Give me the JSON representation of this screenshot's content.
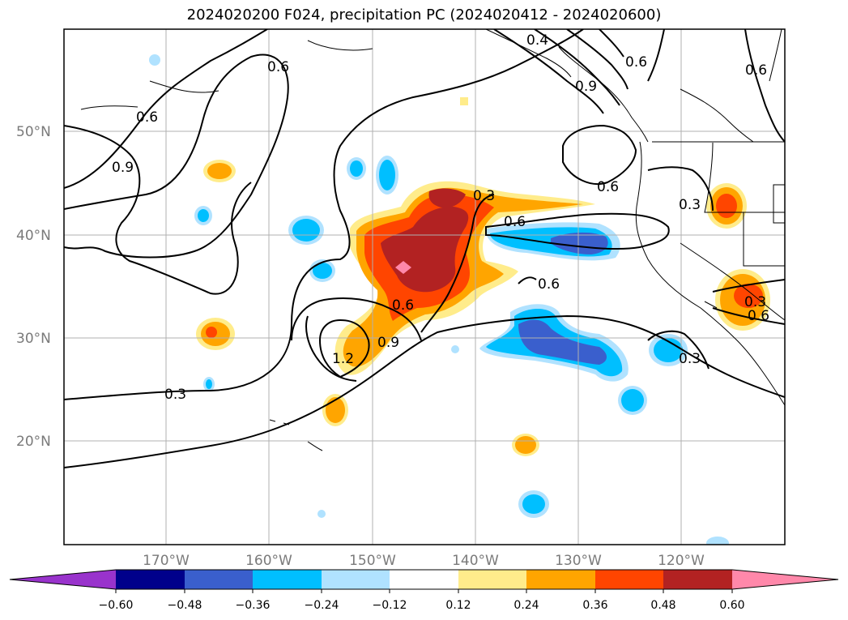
{
  "title": "2024020200 F024, precipitation PC (2024020412 - 2024020600)",
  "lat_labels": [
    "50°N",
    "40°N",
    "30°N",
    "20°N"
  ],
  "lon_labels": [
    "170°W",
    "160°W",
    "150°W",
    "140°W",
    "130°W",
    "120°W"
  ],
  "colorbar": {
    "ticks": [
      "−0.60",
      "−0.48",
      "−0.36",
      "−0.24",
      "−0.12",
      "0.12",
      "0.24",
      "0.36",
      "0.48",
      "0.60"
    ],
    "colors": {
      "under": "#9933cc",
      "neg_060_048": "#00008b",
      "neg_048_036": "#3a5fcd",
      "neg_036_024": "#00bfff",
      "neg_024_012": "#b0e2ff",
      "neutral": "#ffffff",
      "pos_012_024": "#ffec8b",
      "pos_024_036": "#ffa500",
      "pos_036_048": "#ff4500",
      "pos_048_060": "#b22222",
      "over": "#ff88aa"
    }
  },
  "contour_labels": [
    "0.6",
    "0.6",
    "0.9",
    "0.3",
    "0.6",
    "0.3",
    "0.6",
    "0.6",
    "0.3",
    "0.6",
    "0.9",
    "1.2",
    "0.3",
    "0.9",
    "0.6",
    "0.6",
    "0.4",
    "0.3",
    "0.6"
  ]
}
